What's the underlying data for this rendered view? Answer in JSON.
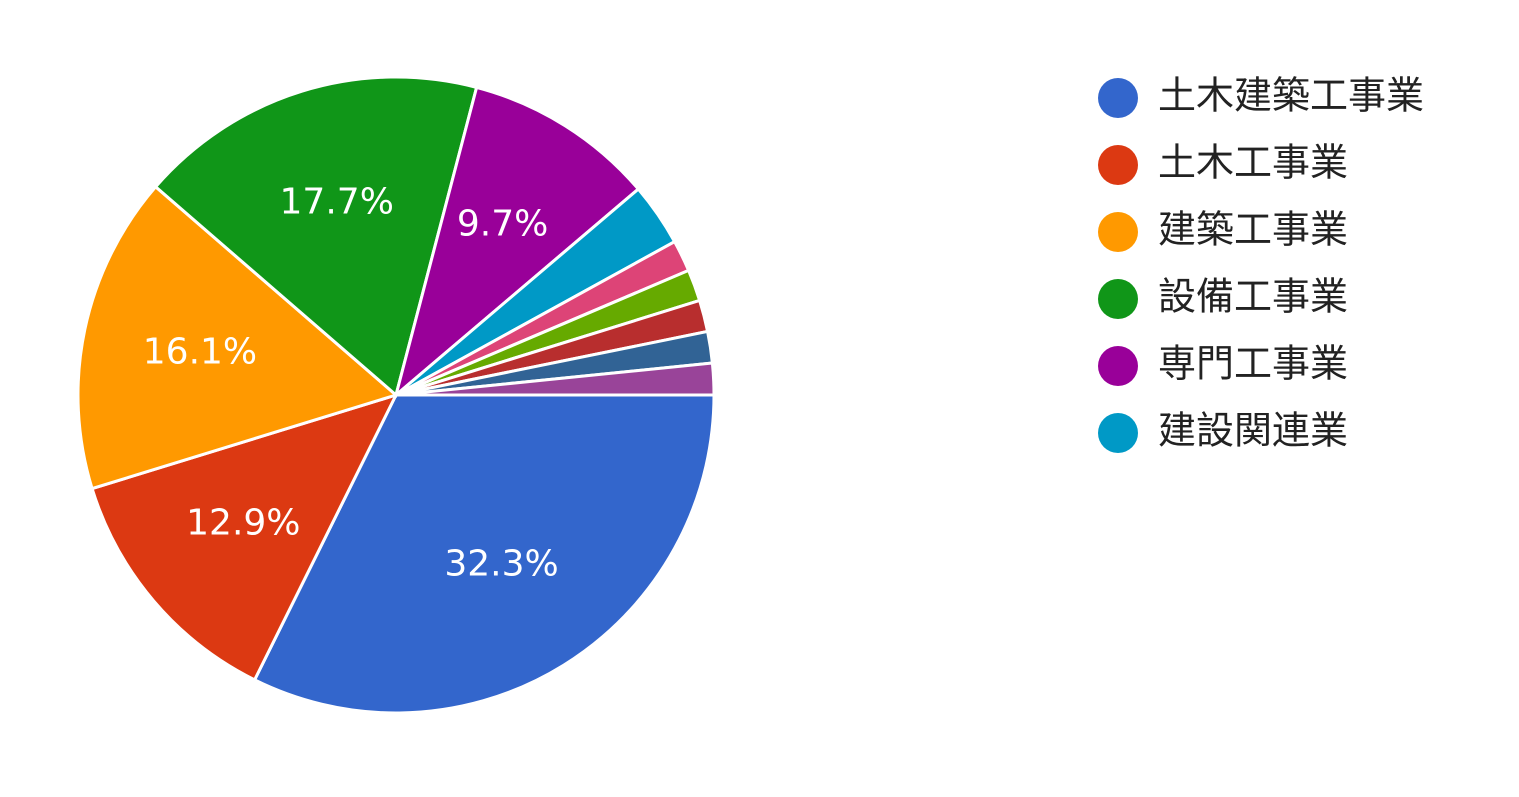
{
  "chart_data": {
    "type": "pie",
    "categories": [
      "土木建築工事業",
      "土木工事業",
      "建築工事業",
      "設備工事業",
      "専門工事業",
      "建設関連業",
      null,
      null,
      null,
      null,
      null
    ],
    "values": [
      32.3,
      12.9,
      16.1,
      17.7,
      9.7,
      3.2,
      1.6,
      1.6,
      1.6,
      1.6,
      1.6
    ],
    "value_labels": [
      "32.3%",
      "12.9%",
      "16.1%",
      "17.7%",
      "9.7%",
      null,
      null,
      null,
      null,
      null,
      null
    ],
    "colors": [
      "#3366cc",
      "#dc3912",
      "#ff9900",
      "#109618",
      "#990099",
      "#0099c6",
      "#dd4477",
      "#66aa00",
      "#b82e2e",
      "#316395",
      "#994499"
    ],
    "legend": "right"
  }
}
